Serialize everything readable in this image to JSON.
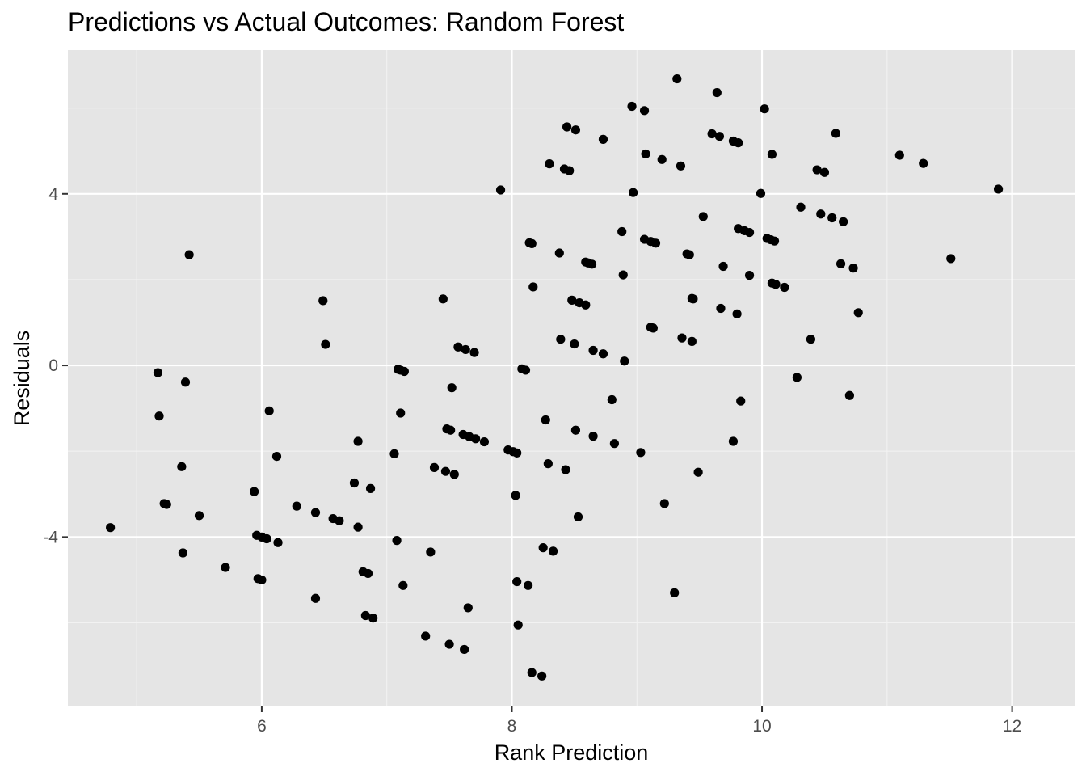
{
  "chart_data": {
    "type": "scatter",
    "title": "Predictions vs Actual Outcomes: Random Forest",
    "xlabel": "Rank Prediction",
    "ylabel": "Residuals",
    "xlim": [
      4.45,
      12.5
    ],
    "ylim": [
      -7.95,
      7.35
    ],
    "xticks": [
      6,
      8,
      10,
      12
    ],
    "xtick_labels": [
      "6",
      "8",
      "10",
      "12"
    ],
    "yticks": [
      -4,
      0,
      4
    ],
    "ytick_labels": [
      "-4",
      "0",
      "4"
    ],
    "x_minor": [
      5,
      7,
      9,
      11
    ],
    "y_minor": [
      -6,
      -2,
      2,
      6
    ],
    "grid": true,
    "legend": "none",
    "points": [
      {
        "x": 4.79,
        "y": -3.78
      },
      {
        "x": 5.17,
        "y": -0.17
      },
      {
        "x": 5.18,
        "y": -1.18
      },
      {
        "x": 5.22,
        "y": -3.22
      },
      {
        "x": 5.24,
        "y": -3.24
      },
      {
        "x": 5.36,
        "y": -2.36
      },
      {
        "x": 5.37,
        "y": -4.37
      },
      {
        "x": 5.39,
        "y": -0.39
      },
      {
        "x": 5.42,
        "y": 2.58
      },
      {
        "x": 5.5,
        "y": -3.5
      },
      {
        "x": 5.71,
        "y": -4.71
      },
      {
        "x": 5.94,
        "y": -2.94
      },
      {
        "x": 5.96,
        "y": -3.96
      },
      {
        "x": 5.97,
        "y": -4.97
      },
      {
        "x": 6.0,
        "y": -4.0
      },
      {
        "x": 6.0,
        "y": -5.0
      },
      {
        "x": 6.04,
        "y": -4.04
      },
      {
        "x": 6.06,
        "y": -1.06
      },
      {
        "x": 6.12,
        "y": -2.12
      },
      {
        "x": 6.13,
        "y": -4.13
      },
      {
        "x": 6.28,
        "y": -3.28
      },
      {
        "x": 6.43,
        "y": -3.43
      },
      {
        "x": 6.43,
        "y": -5.43
      },
      {
        "x": 6.49,
        "y": 1.51
      },
      {
        "x": 6.51,
        "y": 0.49
      },
      {
        "x": 6.57,
        "y": -3.57
      },
      {
        "x": 6.62,
        "y": -3.62
      },
      {
        "x": 6.74,
        "y": -2.74
      },
      {
        "x": 6.77,
        "y": -1.77
      },
      {
        "x": 6.77,
        "y": -3.77
      },
      {
        "x": 6.81,
        "y": -4.81
      },
      {
        "x": 6.83,
        "y": -5.83
      },
      {
        "x": 6.85,
        "y": -4.85
      },
      {
        "x": 6.87,
        "y": -2.87
      },
      {
        "x": 6.89,
        "y": -5.89
      },
      {
        "x": 7.06,
        "y": -2.06
      },
      {
        "x": 7.08,
        "y": -4.08
      },
      {
        "x": 7.09,
        "y": -0.09
      },
      {
        "x": 7.11,
        "y": -1.11
      },
      {
        "x": 7.11,
        "y": -0.11
      },
      {
        "x": 7.13,
        "y": -5.13
      },
      {
        "x": 7.14,
        "y": -0.14
      },
      {
        "x": 7.31,
        "y": -6.31
      },
      {
        "x": 7.35,
        "y": -4.35
      },
      {
        "x": 7.38,
        "y": -2.38
      },
      {
        "x": 7.45,
        "y": 1.55
      },
      {
        "x": 7.47,
        "y": -2.47
      },
      {
        "x": 7.48,
        "y": -1.48
      },
      {
        "x": 7.5,
        "y": -6.5
      },
      {
        "x": 7.51,
        "y": -1.51
      },
      {
        "x": 7.52,
        "y": -0.52
      },
      {
        "x": 7.54,
        "y": -2.54
      },
      {
        "x": 7.57,
        "y": 0.43
      },
      {
        "x": 7.61,
        "y": -1.61
      },
      {
        "x": 7.62,
        "y": -6.62
      },
      {
        "x": 7.63,
        "y": 0.37
      },
      {
        "x": 7.65,
        "y": -5.65
      },
      {
        "x": 7.66,
        "y": -1.66
      },
      {
        "x": 7.7,
        "y": 0.3
      },
      {
        "x": 7.71,
        "y": -1.71
      },
      {
        "x": 7.78,
        "y": -1.78
      },
      {
        "x": 7.91,
        "y": 4.09
      },
      {
        "x": 7.97,
        "y": -1.97
      },
      {
        "x": 8.01,
        "y": -2.01
      },
      {
        "x": 8.03,
        "y": -3.03
      },
      {
        "x": 8.04,
        "y": -2.04
      },
      {
        "x": 8.04,
        "y": -5.04
      },
      {
        "x": 8.05,
        "y": -6.05
      },
      {
        "x": 8.08,
        "y": -0.08
      },
      {
        "x": 8.11,
        "y": -0.11
      },
      {
        "x": 8.13,
        "y": -5.13
      },
      {
        "x": 8.14,
        "y": 2.86
      },
      {
        "x": 8.16,
        "y": -7.16
      },
      {
        "x": 8.16,
        "y": 2.84
      },
      {
        "x": 8.17,
        "y": 1.83
      },
      {
        "x": 8.24,
        "y": -7.24
      },
      {
        "x": 8.25,
        "y": -4.25
      },
      {
        "x": 8.27,
        "y": -1.27
      },
      {
        "x": 8.29,
        "y": -2.29
      },
      {
        "x": 8.3,
        "y": 4.7
      },
      {
        "x": 8.33,
        "y": -4.33
      },
      {
        "x": 8.38,
        "y": 2.62
      },
      {
        "x": 8.39,
        "y": 0.61
      },
      {
        "x": 8.42,
        "y": 4.58
      },
      {
        "x": 8.43,
        "y": -2.43
      },
      {
        "x": 8.44,
        "y": 5.56
      },
      {
        "x": 8.46,
        "y": 4.54
      },
      {
        "x": 8.48,
        "y": 1.52
      },
      {
        "x": 8.5,
        "y": 0.5
      },
      {
        "x": 8.51,
        "y": -1.51
      },
      {
        "x": 8.51,
        "y": 5.49
      },
      {
        "x": 8.53,
        "y": -3.53
      },
      {
        "x": 8.54,
        "y": 1.46
      },
      {
        "x": 8.59,
        "y": 1.41
      },
      {
        "x": 8.59,
        "y": 2.41
      },
      {
        "x": 8.61,
        "y": 2.39
      },
      {
        "x": 8.64,
        "y": 2.36
      },
      {
        "x": 8.65,
        "y": -1.65
      },
      {
        "x": 8.65,
        "y": 0.35
      },
      {
        "x": 8.73,
        "y": 5.27
      },
      {
        "x": 8.73,
        "y": 0.27
      },
      {
        "x": 8.8,
        "y": -0.8
      },
      {
        "x": 8.82,
        "y": -1.82
      },
      {
        "x": 8.88,
        "y": 3.12
      },
      {
        "x": 8.89,
        "y": 2.11
      },
      {
        "x": 8.9,
        "y": 0.1
      },
      {
        "x": 8.96,
        "y": 6.04
      },
      {
        "x": 8.97,
        "y": 4.03
      },
      {
        "x": 9.03,
        "y": -2.03
      },
      {
        "x": 9.06,
        "y": 2.94
      },
      {
        "x": 9.06,
        "y": 5.94
      },
      {
        "x": 9.07,
        "y": 4.93
      },
      {
        "x": 9.11,
        "y": 2.89
      },
      {
        "x": 9.11,
        "y": 0.89
      },
      {
        "x": 9.13,
        "y": 0.87
      },
      {
        "x": 9.15,
        "y": 2.85
      },
      {
        "x": 9.2,
        "y": 4.8
      },
      {
        "x": 9.22,
        "y": -3.22
      },
      {
        "x": 9.3,
        "y": -5.3
      },
      {
        "x": 9.32,
        "y": 6.68
      },
      {
        "x": 9.35,
        "y": 4.65
      },
      {
        "x": 9.36,
        "y": 0.64
      },
      {
        "x": 9.4,
        "y": 2.6
      },
      {
        "x": 9.42,
        "y": 2.58
      },
      {
        "x": 9.44,
        "y": 0.56
      },
      {
        "x": 9.44,
        "y": 1.56
      },
      {
        "x": 9.45,
        "y": 1.55
      },
      {
        "x": 9.49,
        "y": -2.49
      },
      {
        "x": 9.53,
        "y": 3.47
      },
      {
        "x": 9.6,
        "y": 5.4
      },
      {
        "x": 9.64,
        "y": 6.36
      },
      {
        "x": 9.66,
        "y": 5.34
      },
      {
        "x": 9.67,
        "y": 1.33
      },
      {
        "x": 9.69,
        "y": 2.31
      },
      {
        "x": 9.77,
        "y": -1.77
      },
      {
        "x": 9.77,
        "y": 5.23
      },
      {
        "x": 9.8,
        "y": 1.2
      },
      {
        "x": 9.81,
        "y": 3.19
      },
      {
        "x": 9.81,
        "y": 5.19
      },
      {
        "x": 9.83,
        "y": -0.83
      },
      {
        "x": 9.86,
        "y": 3.14
      },
      {
        "x": 9.9,
        "y": 2.1
      },
      {
        "x": 9.9,
        "y": 3.1
      },
      {
        "x": 9.99,
        "y": 4.01
      },
      {
        "x": 10.02,
        "y": 5.98
      },
      {
        "x": 10.04,
        "y": 2.96
      },
      {
        "x": 10.07,
        "y": 2.93
      },
      {
        "x": 10.08,
        "y": 1.92
      },
      {
        "x": 10.08,
        "y": 4.92
      },
      {
        "x": 10.1,
        "y": 2.9
      },
      {
        "x": 10.11,
        "y": 1.89
      },
      {
        "x": 10.18,
        "y": 1.82
      },
      {
        "x": 10.28,
        "y": -0.28
      },
      {
        "x": 10.31,
        "y": 3.69
      },
      {
        "x": 10.39,
        "y": 0.61
      },
      {
        "x": 10.44,
        "y": 4.56
      },
      {
        "x": 10.47,
        "y": 3.53
      },
      {
        "x": 10.5,
        "y": 4.5
      },
      {
        "x": 10.56,
        "y": 3.44
      },
      {
        "x": 10.59,
        "y": 5.41
      },
      {
        "x": 10.63,
        "y": 2.37
      },
      {
        "x": 10.65,
        "y": 3.35
      },
      {
        "x": 10.7,
        "y": -0.7
      },
      {
        "x": 10.73,
        "y": 2.27
      },
      {
        "x": 10.77,
        "y": 1.23
      },
      {
        "x": 11.1,
        "y": 4.9
      },
      {
        "x": 11.29,
        "y": 4.71
      },
      {
        "x": 11.51,
        "y": 2.49
      },
      {
        "x": 11.89,
        "y": 4.11
      }
    ]
  }
}
